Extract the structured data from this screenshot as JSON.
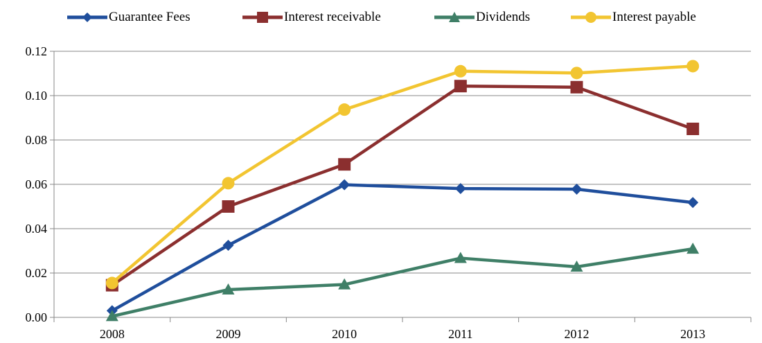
{
  "chart_data": {
    "type": "line",
    "title": "",
    "xlabel": "",
    "ylabel": "",
    "categories": [
      "2008",
      "2009",
      "2010",
      "2011",
      "2012",
      "2013"
    ],
    "ylim": [
      0,
      0.12
    ],
    "yticks": [
      "0.00",
      "0.02",
      "0.04",
      "0.06",
      "0.08",
      "0.10",
      "0.12"
    ],
    "grid": true,
    "legend_position": "top",
    "series": [
      {
        "name": "Guarantee Fees",
        "color": "#1f4e9c",
        "marker": "diamond",
        "values": [
          0.003,
          0.0325,
          0.0598,
          0.0581,
          0.0578,
          0.0518
        ]
      },
      {
        "name": "Interest receivable",
        "color": "#8b2f2f",
        "marker": "square",
        "values": [
          0.0145,
          0.05,
          0.069,
          0.1043,
          0.1038,
          0.085
        ]
      },
      {
        "name": "Dividends",
        "color": "#3f7f67",
        "marker": "triangle",
        "values": [
          0.0005,
          0.0125,
          0.0148,
          0.0267,
          0.0228,
          0.0309
        ]
      },
      {
        "name": "Interest payable",
        "color": "#f2c531",
        "marker": "circle",
        "values": [
          0.0155,
          0.0605,
          0.0937,
          0.111,
          0.1102,
          0.1133
        ]
      }
    ]
  }
}
